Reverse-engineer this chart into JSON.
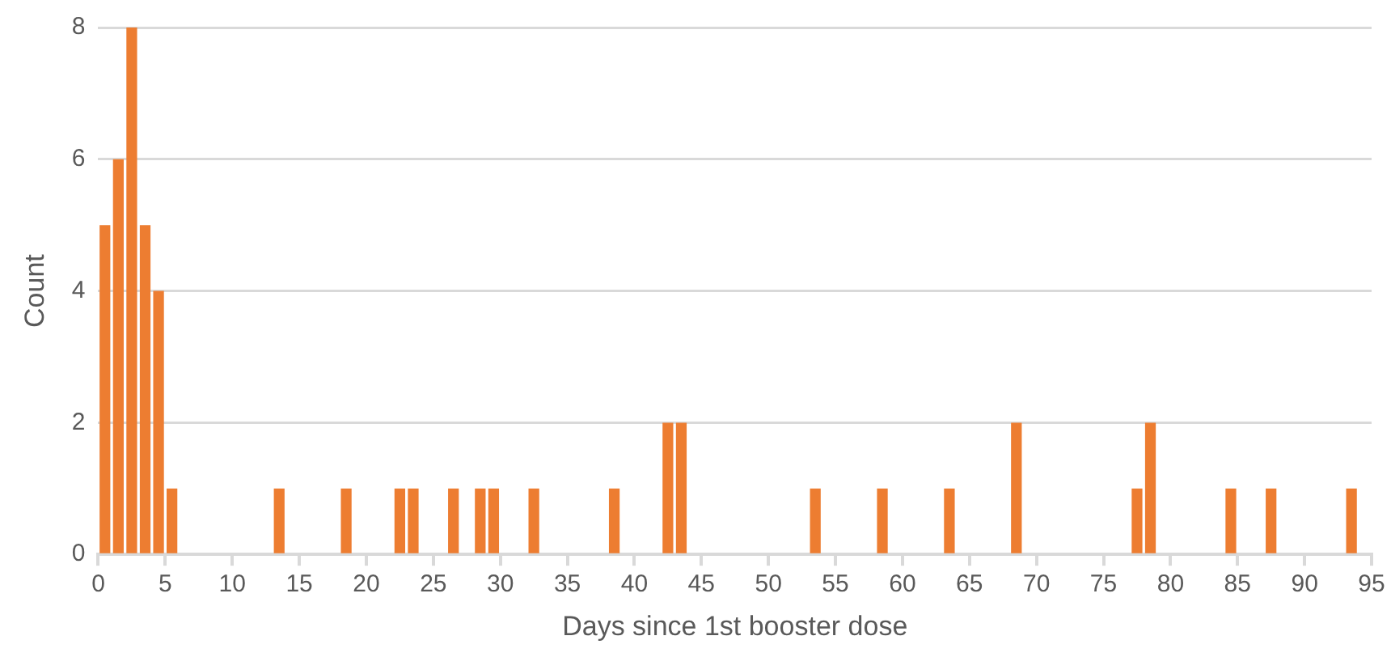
{
  "chart_data": {
    "type": "histogram",
    "xlabel": "Days since 1st booster dose",
    "ylabel": "Count",
    "color": "#ed7d31",
    "bins": [
      0,
      1,
      2,
      3,
      4,
      5,
      6,
      7,
      8,
      9,
      10,
      11,
      12,
      13,
      14,
      15,
      16,
      17,
      18,
      19,
      20,
      21,
      22,
      23,
      24,
      25,
      26,
      27,
      28,
      29,
      30,
      31,
      32,
      33,
      34,
      35,
      36,
      37,
      38,
      39,
      40,
      41,
      42,
      43,
      44,
      45,
      46,
      47,
      48,
      49,
      50,
      51,
      52,
      53,
      54,
      55,
      56,
      57,
      58,
      59,
      60,
      61,
      62,
      63,
      64,
      65,
      66,
      67,
      68,
      69,
      70,
      71,
      72,
      73,
      74,
      75,
      76,
      77,
      78,
      79,
      80,
      81,
      82,
      83,
      84,
      85,
      86,
      87,
      88,
      89,
      90,
      91,
      92,
      93,
      94,
      95
    ],
    "values": [
      5,
      6,
      8,
      5,
      4,
      1,
      0,
      0,
      0,
      0,
      0,
      0,
      0,
      1,
      0,
      0,
      0,
      0,
      1,
      0,
      0,
      0,
      1,
      1,
      0,
      0,
      1,
      0,
      1,
      1,
      0,
      0,
      1,
      0,
      0,
      0,
      0,
      0,
      1,
      0,
      0,
      0,
      2,
      2,
      0,
      0,
      0,
      0,
      0,
      0,
      0,
      0,
      0,
      1,
      0,
      0,
      0,
      0,
      1,
      0,
      0,
      0,
      0,
      1,
      0,
      0,
      0,
      0,
      2,
      0,
      0,
      0,
      0,
      0,
      0,
      0,
      0,
      1,
      2,
      0,
      0,
      0,
      0,
      0,
      1,
      0,
      0,
      1,
      0,
      0,
      0,
      0,
      0,
      1,
      0
    ],
    "xlim": [
      0,
      95
    ],
    "xticks": [
      0,
      5,
      10,
      15,
      20,
      25,
      30,
      35,
      40,
      45,
      50,
      55,
      60,
      65,
      70,
      75,
      80,
      85,
      90,
      95
    ],
    "ylim": [
      0,
      8
    ],
    "yticks": [
      0,
      2,
      4,
      6,
      8
    ],
    "grid": "y",
    "legend": false
  }
}
